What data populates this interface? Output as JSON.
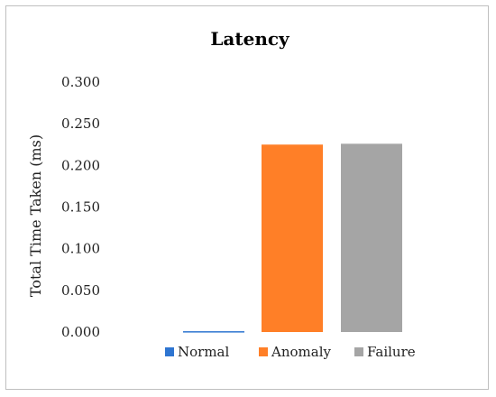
{
  "chart_data": {
    "type": "bar",
    "title": "Latency",
    "xlabel": "",
    "ylabel": "Total Time Taken (ms)",
    "ylim": [
      0,
      0.3
    ],
    "yticks": [
      "0.000",
      "0.050",
      "0.100",
      "0.150",
      "0.200",
      "0.250",
      "0.300"
    ],
    "grid": false,
    "legend": "bottom",
    "series": [
      {
        "name": "Normal",
        "value": 0.001,
        "color": "#2e75d1"
      },
      {
        "name": "Anomaly",
        "value": 0.225,
        "color": "#ff7f27"
      },
      {
        "name": "Failure",
        "value": 0.226,
        "color": "#a5a5a5"
      }
    ]
  }
}
